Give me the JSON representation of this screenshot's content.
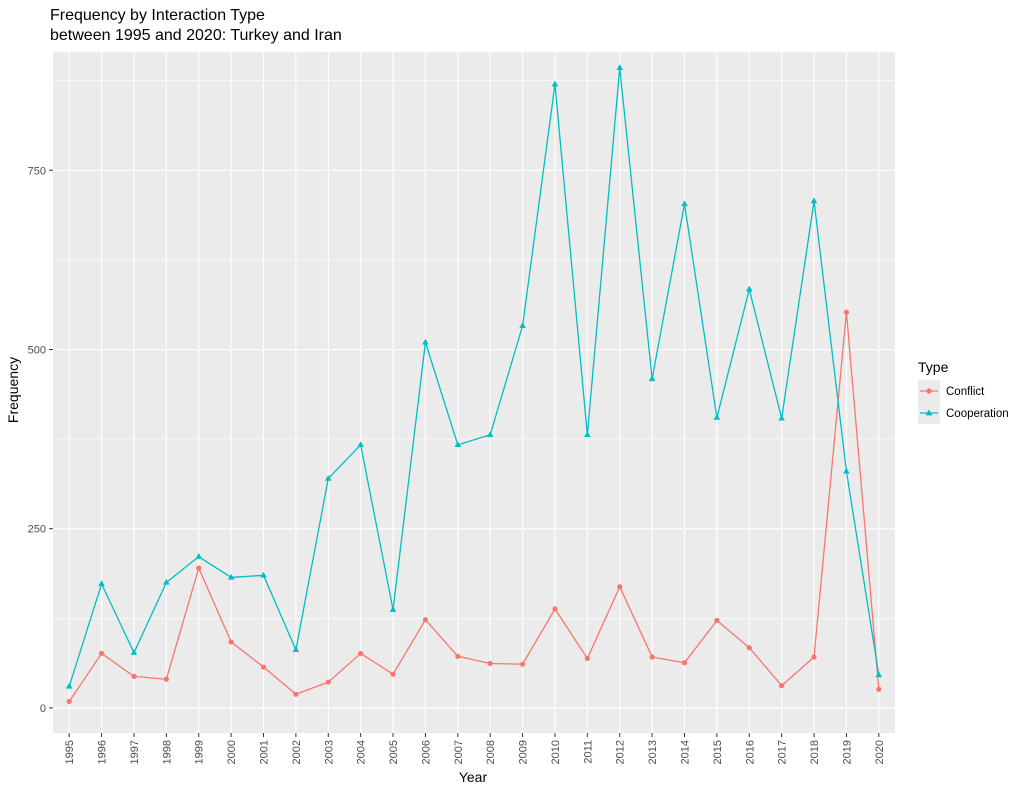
{
  "chart_data": {
    "type": "line",
    "title": "Frequency by Interaction Type",
    "subtitle": "between 1995 and 2020: Turkey and Iran",
    "xlabel": "Year",
    "ylabel": "Frequency",
    "ylim": [
      -35,
      915
    ],
    "yticks": [
      0,
      250,
      500,
      750
    ],
    "grid": true,
    "legend": {
      "title": "Type",
      "placement": "right"
    },
    "categories": [
      "1995",
      "1996",
      "1997",
      "1998",
      "1999",
      "2000",
      "2001",
      "2002",
      "2003",
      "2004",
      "2005",
      "2006",
      "2007",
      "2008",
      "2009",
      "2010",
      "2011",
      "2012",
      "2013",
      "2014",
      "2015",
      "2016",
      "2017",
      "2018",
      "2019",
      "2020"
    ],
    "series": [
      {
        "name": "Conflict",
        "color": "#F8766D",
        "marker": "circle",
        "values": [
          9,
          76,
          44,
          40,
          195,
          92,
          57,
          19,
          36,
          76,
          47,
          123,
          72,
          62,
          61,
          138,
          69,
          169,
          71,
          63,
          122,
          84,
          31,
          71,
          552,
          26
        ]
      },
      {
        "name": "Cooperation",
        "color": "#00BFC4",
        "marker": "triangle",
        "values": [
          30,
          173,
          77,
          175,
          211,
          182,
          185,
          81,
          320,
          367,
          137,
          510,
          367,
          381,
          533,
          870,
          381,
          893,
          459,
          703,
          405,
          584,
          404,
          707,
          330,
          46
        ]
      }
    ]
  }
}
